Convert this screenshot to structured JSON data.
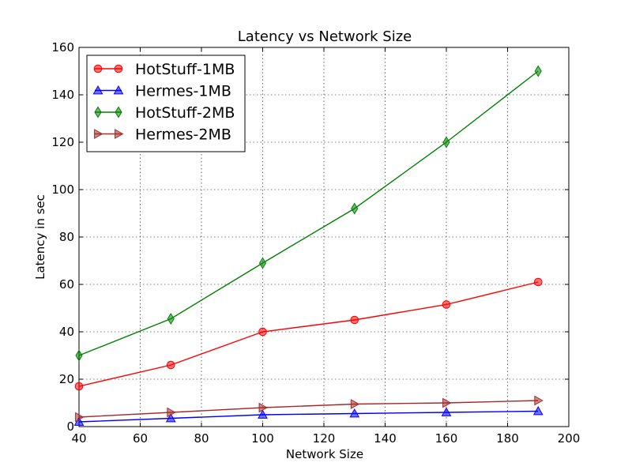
{
  "chart_data": {
    "type": "line",
    "title": "Latency vs Network Size",
    "xlabel": "Network Size",
    "ylabel": "Latency in sec",
    "xlim": [
      40,
      200
    ],
    "ylim": [
      0,
      160
    ],
    "xticks": [
      40,
      60,
      80,
      100,
      120,
      140,
      160,
      180,
      200
    ],
    "yticks": [
      0,
      20,
      40,
      60,
      80,
      100,
      120,
      140,
      160
    ],
    "grid": true,
    "legend_position": "top-left",
    "x": [
      40,
      70,
      100,
      130,
      160,
      190
    ],
    "series": [
      {
        "name": "HotStuff-1MB",
        "values": [
          17,
          26,
          40,
          45,
          51.5,
          61
        ],
        "color": "#ff0000",
        "marker": "circle"
      },
      {
        "name": "Hermes-1MB",
        "values": [
          2,
          3.5,
          5,
          5.5,
          6,
          6.5
        ],
        "color": "#0000ff",
        "marker": "triangle-up"
      },
      {
        "name": "HotStuff-2MB",
        "values": [
          30,
          45.5,
          69,
          92,
          120,
          150
        ],
        "color": "#008000",
        "marker": "thin-diamond"
      },
      {
        "name": "Hermes-2MB",
        "values": [
          4,
          6,
          8,
          9.5,
          10,
          11
        ],
        "color": "#a52a2a",
        "marker": "triangle-right"
      }
    ]
  }
}
